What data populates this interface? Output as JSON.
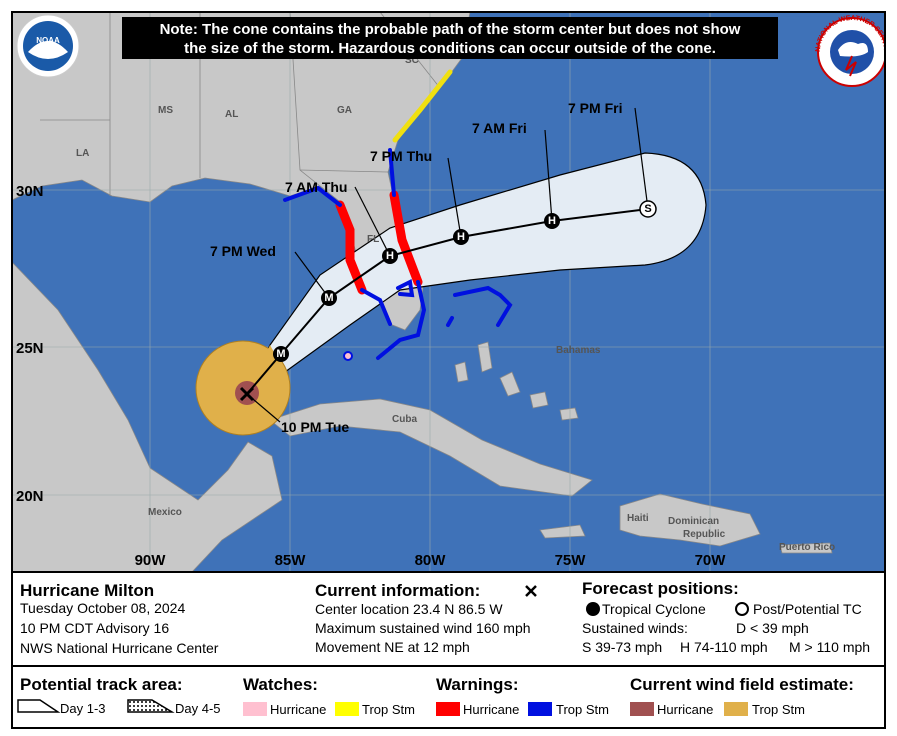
{
  "note": [
    "Note: The cone contains the probable path of the storm center but does not show",
    "the size of the storm. Hazardous conditions can occur outside of the cone."
  ],
  "logos": {
    "noaa": "NOAA",
    "nws": "NATIONAL WEATHER SERVICE"
  },
  "map": {
    "places": [
      "MS",
      "AL",
      "GA",
      "LA",
      "FL",
      "SC",
      "Bahamas",
      "Cuba",
      "Mexico",
      "Haiti",
      "Dominican",
      "Republic",
      "Puerto Rico"
    ],
    "latitudes": [
      "30N",
      "25N",
      "20N"
    ],
    "longitudes": [
      "90W",
      "85W",
      "80W",
      "75W",
      "70W"
    ],
    "forecast_times": [
      "10 PM Tue",
      "7 PM Wed",
      "7 AM Thu",
      "7 PM Thu",
      "7 AM Fri",
      "7 PM Fri"
    ],
    "point_letters": [
      "M",
      "M",
      "H",
      "H",
      "H",
      "S"
    ]
  },
  "info": {
    "storm": "Hurricane Milton",
    "date": "Tuesday October 08, 2024",
    "advisory": "10 PM CDT Advisory 16",
    "office": "NWS National Hurricane Center"
  },
  "current": {
    "title": "Current information:",
    "lines": [
      "Center location 23.4 N 86.5 W",
      "Maximum sustained wind 160 mph",
      "Movement NE at 12 mph"
    ]
  },
  "forecast": {
    "title": "Forecast positions:",
    "tropical": "Tropical Cyclone",
    "post": "Post/Potential TC",
    "sustained": "Sustained winds:",
    "d": "D < 39 mph",
    "s": "S 39-73 mph",
    "h": "H 74-110 mph",
    "m": "M > 110 mph"
  },
  "legend": {
    "track": "Potential track area:",
    "day13": "Day 1-3",
    "day45": "Day 4-5",
    "watches": "Watches:",
    "watch_hurricane": "Hurricane",
    "watch_ts": "Trop Stm",
    "warnings": "Warnings:",
    "warn_hurricane": "Hurricane",
    "warn_ts": "Trop Stm",
    "wind": "Current wind field estimate:",
    "wind_hurricane": "Hurricane",
    "wind_ts": "Trop Stm"
  }
}
